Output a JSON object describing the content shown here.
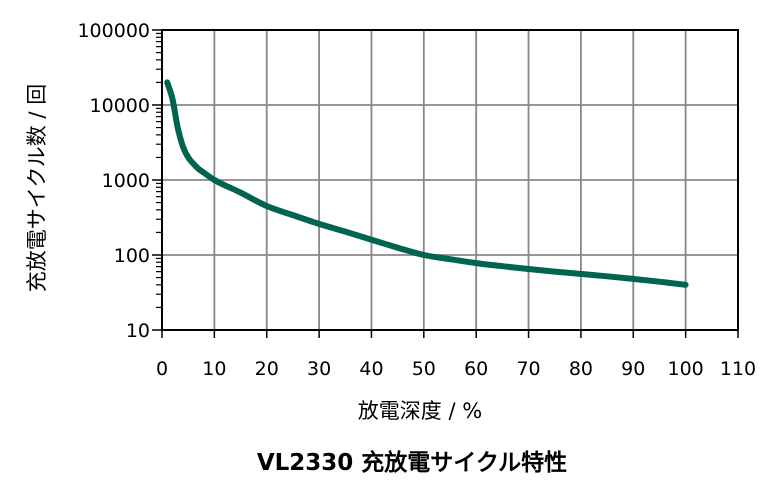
{
  "chart_data": {
    "type": "line",
    "title": "VL2330 充放電サイクル特性",
    "xlabel": "放電深度 / %",
    "ylabel": "充放電サイクル数 / 回",
    "xlim": [
      0,
      110
    ],
    "ylim": [
      10,
      100000
    ],
    "yscale": "log",
    "grid": true,
    "legend": "none",
    "x_ticks": [
      "0",
      "10",
      "20",
      "30",
      "40",
      "50",
      "60",
      "70",
      "80",
      "90",
      "100",
      "110"
    ],
    "y_ticks": [
      "10",
      "100",
      "1000",
      "10000",
      "100000"
    ],
    "series": [
      {
        "color": "#00644e",
        "points": [
          [
            1,
            20000
          ],
          [
            2,
            12000
          ],
          [
            3,
            5000
          ],
          [
            4,
            2800
          ],
          [
            5,
            2000
          ],
          [
            6,
            1650
          ],
          [
            7,
            1400
          ],
          [
            8,
            1250
          ],
          [
            10,
            1000
          ],
          [
            12,
            850
          ],
          [
            15,
            680
          ],
          [
            20,
            450
          ],
          [
            25,
            340
          ],
          [
            30,
            260
          ],
          [
            35,
            205
          ],
          [
            40,
            160
          ],
          [
            45,
            125
          ],
          [
            50,
            100
          ],
          [
            55,
            88
          ],
          [
            60,
            78
          ],
          [
            65,
            71
          ],
          [
            70,
            65
          ],
          [
            75,
            60
          ],
          [
            80,
            56
          ],
          [
            85,
            52
          ],
          [
            90,
            48
          ],
          [
            95,
            44
          ],
          [
            100,
            40
          ]
        ]
      }
    ]
  }
}
